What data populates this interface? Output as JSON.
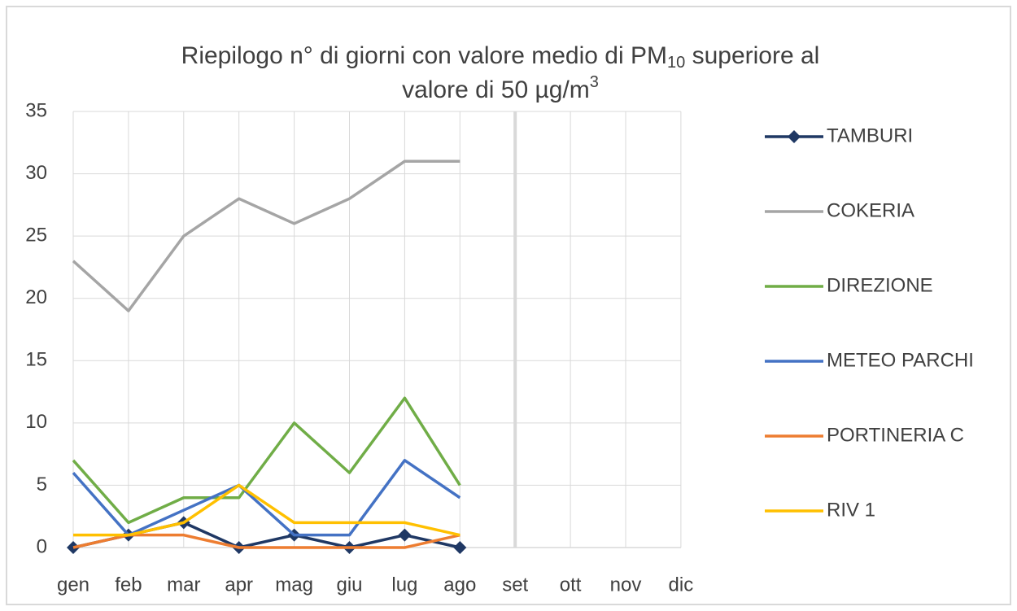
{
  "chart_data": {
    "type": "line",
    "title": [
      [
        "Riepilogo  n° di giorni con valore medio di PM",
        "10",
        " superiore al"
      ],
      [
        "valore di 50 µg/m",
        "3"
      ]
    ],
    "categories": [
      "gen",
      "feb",
      "mar",
      "apr",
      "mag",
      "giu",
      "lug",
      "ago",
      "set",
      "ott",
      "nov",
      "dic"
    ],
    "series": [
      {
        "name": "TAMBURI",
        "color": "#1f3864",
        "marker": "diamond",
        "values": [
          0,
          1,
          2,
          0,
          1,
          0,
          1,
          0,
          null,
          null,
          null,
          null
        ]
      },
      {
        "name": "COKERIA",
        "color": "#a5a5a5",
        "values": [
          23,
          19,
          25,
          28,
          26,
          28,
          31,
          31,
          null,
          null,
          null,
          null
        ]
      },
      {
        "name": "DIREZIONE",
        "color": "#70ad47",
        "values": [
          7,
          2,
          4,
          4,
          10,
          6,
          12,
          5,
          null,
          null,
          null,
          null
        ]
      },
      {
        "name": "METEO PARCHI",
        "color": "#4472c4",
        "values": [
          6,
          1,
          3,
          5,
          1,
          1,
          7,
          4,
          null,
          null,
          null,
          null
        ]
      },
      {
        "name": "PORTINERIA C",
        "color": "#ed7d31",
        "values": [
          0,
          1,
          1,
          0,
          0,
          0,
          0,
          1,
          null,
          null,
          null,
          null
        ]
      },
      {
        "name": "RIV 1",
        "color": "#ffc000",
        "values": [
          1,
          1,
          2,
          5,
          2,
          2,
          2,
          1,
          null,
          null,
          null,
          null
        ]
      }
    ],
    "ylim": [
      0,
      35
    ],
    "yticks": [
      0,
      5,
      10,
      15,
      20,
      25,
      30,
      35
    ],
    "grid": true,
    "legend": "right"
  }
}
